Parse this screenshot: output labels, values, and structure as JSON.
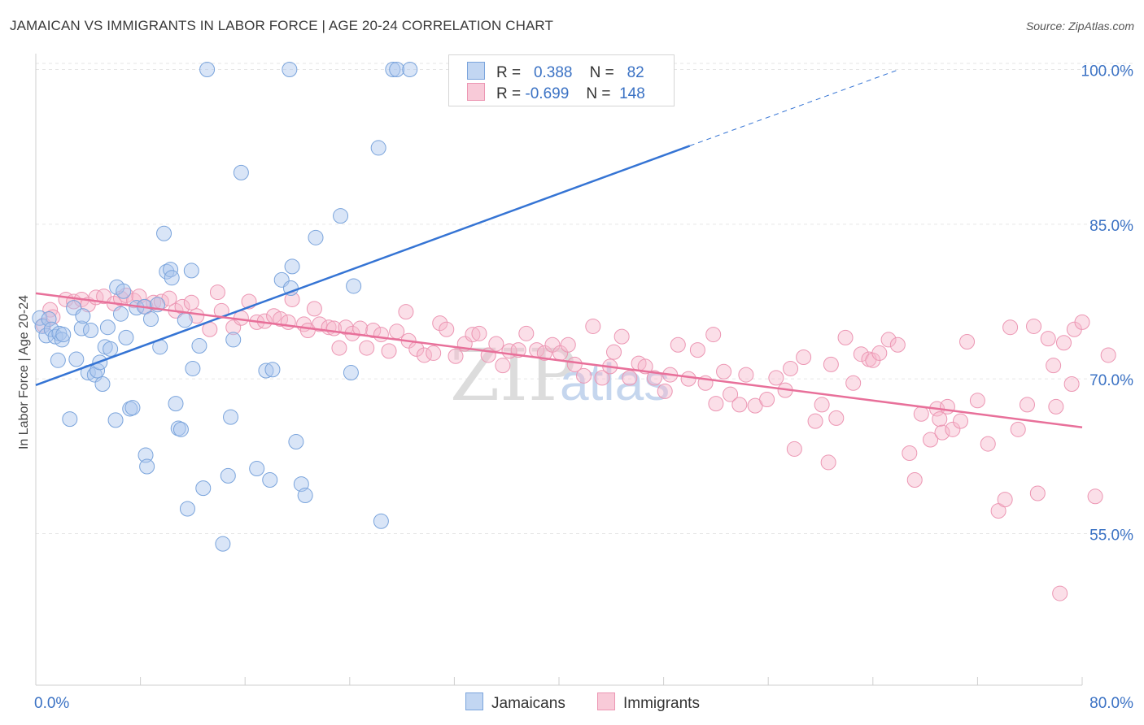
{
  "title": "JAMAICAN VS IMMIGRANTS IN LABOR FORCE | AGE 20-24 CORRELATION CHART",
  "source": "Source: ZipAtlas.com",
  "watermark": {
    "zip": "ZIP",
    "atlas": "atlas"
  },
  "legend": {
    "rows": [
      {
        "r_label": "R =",
        "r_value": "0.388",
        "n_label": "N =",
        "n_value": "82"
      },
      {
        "r_label": "R =",
        "r_value": "-0.699",
        "n_label": "N =",
        "n_value": "148"
      }
    ]
  },
  "bottom_legend": [
    "Jamaicans",
    "Immigrants"
  ],
  "colors": {
    "blue_fill": "#aac6ee",
    "blue_stroke": "#7aa4dc",
    "blue_line": "#3574d4",
    "pink_fill": "#f6b9cc",
    "pink_stroke": "#ec96b3",
    "pink_line": "#e8709a",
    "tick_text": "#3b72c4",
    "grid": "#e6e6e6"
  },
  "chart_data": {
    "type": "scatter",
    "title": "JAMAICAN VS IMMIGRANTS IN LABOR FORCE | AGE 20-24 CORRELATION CHART",
    "xlabel": "",
    "ylabel": "In Labor Force | Age 20-24",
    "xlim": [
      0,
      80
    ],
    "ylim": [
      40.3,
      101.3
    ],
    "x_tick_labels": [
      "0.0%",
      "80.0%"
    ],
    "y_ticks": [
      55,
      70,
      85,
      100
    ],
    "y_tick_labels": [
      "55.0%",
      "70.0%",
      "85.0%",
      "100.0%"
    ],
    "grid": "horizontal dashed",
    "series": [
      {
        "name": "Jamaicans",
        "R": 0.388,
        "N": 82,
        "trend": {
          "x": [
            0,
            50
          ],
          "y": [
            69.4,
            92.6
          ],
          "dashed_to": [
            66,
            100
          ]
        },
        "points": [
          [
            0.3,
            75.9
          ],
          [
            0.5,
            75.1
          ],
          [
            0.8,
            74.2
          ],
          [
            1.0,
            75.8
          ],
          [
            1.2,
            74.8
          ],
          [
            1.5,
            74.1
          ],
          [
            1.7,
            71.8
          ],
          [
            1.8,
            74.4
          ],
          [
            2.0,
            73.8
          ],
          [
            2.1,
            74.3
          ],
          [
            2.6,
            66.1
          ],
          [
            2.9,
            76.9
          ],
          [
            3.1,
            71.9
          ],
          [
            3.5,
            74.9
          ],
          [
            3.6,
            76.1
          ],
          [
            4.0,
            70.6
          ],
          [
            4.2,
            74.7
          ],
          [
            4.5,
            70.4
          ],
          [
            4.7,
            70.8
          ],
          [
            4.9,
            71.6
          ],
          [
            5.1,
            69.5
          ],
          [
            5.3,
            73.1
          ],
          [
            5.5,
            75.0
          ],
          [
            5.7,
            72.9
          ],
          [
            6.1,
            66.0
          ],
          [
            6.2,
            78.9
          ],
          [
            6.5,
            76.3
          ],
          [
            6.7,
            78.5
          ],
          [
            6.9,
            74.0
          ],
          [
            7.2,
            67.1
          ],
          [
            7.4,
            67.2
          ],
          [
            7.7,
            76.9
          ],
          [
            8.3,
            77.0
          ],
          [
            8.4,
            62.6
          ],
          [
            8.5,
            61.5
          ],
          [
            8.8,
            75.8
          ],
          [
            9.3,
            77.2
          ],
          [
            9.5,
            73.1
          ],
          [
            9.8,
            84.1
          ],
          [
            10.0,
            80.4
          ],
          [
            10.3,
            80.6
          ],
          [
            10.4,
            79.8
          ],
          [
            10.7,
            67.6
          ],
          [
            10.9,
            65.2
          ],
          [
            11.1,
            65.1
          ],
          [
            11.4,
            75.7
          ],
          [
            11.6,
            57.4
          ],
          [
            11.9,
            80.5
          ],
          [
            12.0,
            71.0
          ],
          [
            12.5,
            73.2
          ],
          [
            12.8,
            59.4
          ],
          [
            13.1,
            100.0
          ],
          [
            14.3,
            54.0
          ],
          [
            14.7,
            60.6
          ],
          [
            14.9,
            66.3
          ],
          [
            15.1,
            73.8
          ],
          [
            15.7,
            90.0
          ],
          [
            16.9,
            61.3
          ],
          [
            17.6,
            70.8
          ],
          [
            17.9,
            60.2
          ],
          [
            18.1,
            70.9
          ],
          [
            18.8,
            79.6
          ],
          [
            19.4,
            100.0
          ],
          [
            19.5,
            78.8
          ],
          [
            19.6,
            80.9
          ],
          [
            19.9,
            63.9
          ],
          [
            20.3,
            59.8
          ],
          [
            20.6,
            58.7
          ],
          [
            21.4,
            83.7
          ],
          [
            23.3,
            85.8
          ],
          [
            24.1,
            70.6
          ],
          [
            24.3,
            79.0
          ],
          [
            26.2,
            92.4
          ],
          [
            26.4,
            56.2
          ],
          [
            27.3,
            100.0
          ],
          [
            27.6,
            100.0
          ],
          [
            28.6,
            100.0
          ]
        ]
      },
      {
        "name": "Immigrants",
        "R": -0.699,
        "N": 148,
        "trend": {
          "x": [
            0,
            80
          ],
          "y": [
            78.3,
            65.3
          ]
        },
        "points": [
          [
            0.6,
            75.2
          ],
          [
            1.1,
            76.7
          ],
          [
            1.3,
            76.0
          ],
          [
            2.3,
            77.7
          ],
          [
            2.9,
            77.5
          ],
          [
            3.5,
            77.7
          ],
          [
            4.0,
            77.2
          ],
          [
            4.6,
            77.9
          ],
          [
            5.2,
            78.0
          ],
          [
            6.0,
            77.3
          ],
          [
            6.5,
            77.8
          ],
          [
            6.9,
            78.1
          ],
          [
            7.5,
            77.6
          ],
          [
            7.9,
            78.0
          ],
          [
            8.4,
            77.0
          ],
          [
            9.0,
            77.4
          ],
          [
            9.6,
            77.5
          ],
          [
            10.2,
            77.8
          ],
          [
            10.7,
            76.6
          ],
          [
            11.2,
            77.0
          ],
          [
            11.9,
            77.4
          ],
          [
            12.3,
            76.1
          ],
          [
            13.3,
            74.8
          ],
          [
            13.9,
            78.4
          ],
          [
            14.2,
            76.6
          ],
          [
            15.1,
            75.0
          ],
          [
            15.7,
            75.9
          ],
          [
            16.3,
            77.5
          ],
          [
            16.9,
            75.5
          ],
          [
            17.5,
            75.6
          ],
          [
            18.2,
            76.1
          ],
          [
            18.7,
            75.8
          ],
          [
            19.3,
            75.5
          ],
          [
            19.6,
            77.7
          ],
          [
            20.5,
            75.3
          ],
          [
            20.8,
            74.7
          ],
          [
            21.3,
            76.8
          ],
          [
            21.7,
            75.3
          ],
          [
            22.4,
            75.0
          ],
          [
            22.8,
            74.9
          ],
          [
            23.2,
            73.0
          ],
          [
            23.7,
            75.0
          ],
          [
            24.2,
            74.4
          ],
          [
            24.8,
            74.9
          ],
          [
            25.3,
            73.0
          ],
          [
            25.8,
            74.7
          ],
          [
            26.4,
            74.3
          ],
          [
            27.0,
            72.7
          ],
          [
            27.6,
            74.6
          ],
          [
            28.3,
            76.5
          ],
          [
            28.5,
            73.7
          ],
          [
            29.1,
            72.9
          ],
          [
            29.7,
            72.3
          ],
          [
            30.4,
            72.5
          ],
          [
            30.9,
            75.4
          ],
          [
            31.4,
            74.8
          ],
          [
            32.1,
            72.2
          ],
          [
            32.8,
            73.4
          ],
          [
            33.4,
            74.3
          ],
          [
            33.9,
            74.4
          ],
          [
            34.6,
            72.3
          ],
          [
            35.2,
            73.4
          ],
          [
            35.7,
            71.3
          ],
          [
            36.2,
            72.7
          ],
          [
            36.9,
            72.8
          ],
          [
            37.5,
            74.4
          ],
          [
            38.3,
            72.8
          ],
          [
            38.9,
            72.5
          ],
          [
            39.5,
            73.3
          ],
          [
            40.1,
            72.5
          ],
          [
            40.7,
            73.3
          ],
          [
            41.2,
            71.4
          ],
          [
            41.9,
            70.3
          ],
          [
            42.6,
            75.1
          ],
          [
            43.3,
            70.1
          ],
          [
            43.9,
            71.2
          ],
          [
            44.2,
            72.6
          ],
          [
            44.8,
            74.1
          ],
          [
            45.4,
            70.1
          ],
          [
            46.1,
            71.5
          ],
          [
            46.6,
            71.2
          ],
          [
            47.3,
            70.1
          ],
          [
            48.1,
            68.8
          ],
          [
            48.5,
            70.4
          ],
          [
            49.1,
            73.3
          ],
          [
            49.9,
            70.0
          ],
          [
            50.6,
            72.8
          ],
          [
            51.2,
            69.6
          ],
          [
            51.8,
            74.3
          ],
          [
            52.0,
            67.6
          ],
          [
            52.6,
            70.7
          ],
          [
            53.1,
            68.5
          ],
          [
            53.8,
            67.5
          ],
          [
            54.3,
            70.4
          ],
          [
            55.0,
            67.4
          ],
          [
            55.9,
            68.0
          ],
          [
            56.6,
            70.1
          ],
          [
            57.3,
            68.9
          ],
          [
            57.7,
            71.0
          ],
          [
            58.0,
            63.2
          ],
          [
            58.7,
            72.1
          ],
          [
            59.6,
            65.9
          ],
          [
            60.1,
            67.5
          ],
          [
            60.6,
            61.9
          ],
          [
            60.8,
            71.4
          ],
          [
            61.2,
            66.2
          ],
          [
            61.9,
            74.0
          ],
          [
            62.5,
            69.6
          ],
          [
            63.1,
            72.4
          ],
          [
            63.7,
            71.9
          ],
          [
            64.0,
            71.8
          ],
          [
            64.5,
            72.5
          ],
          [
            65.2,
            73.8
          ],
          [
            65.9,
            73.3
          ],
          [
            66.8,
            62.8
          ],
          [
            67.2,
            60.2
          ],
          [
            67.7,
            66.6
          ],
          [
            68.4,
            64.1
          ],
          [
            68.9,
            67.1
          ],
          [
            69.1,
            66.1
          ],
          [
            69.3,
            64.8
          ],
          [
            69.7,
            67.3
          ],
          [
            70.1,
            65.1
          ],
          [
            70.7,
            65.9
          ],
          [
            71.2,
            73.6
          ],
          [
            72.0,
            67.9
          ],
          [
            72.8,
            63.7
          ],
          [
            73.6,
            57.2
          ],
          [
            74.1,
            58.3
          ],
          [
            74.5,
            75.0
          ],
          [
            75.1,
            65.1
          ],
          [
            75.8,
            67.5
          ],
          [
            76.3,
            75.1
          ],
          [
            76.6,
            58.9
          ],
          [
            77.4,
            73.9
          ],
          [
            77.8,
            71.3
          ],
          [
            78.0,
            67.3
          ],
          [
            78.3,
            49.2
          ],
          [
            78.6,
            73.5
          ],
          [
            79.2,
            69.5
          ],
          [
            79.4,
            74.8
          ],
          [
            80.0,
            75.5
          ],
          [
            81.0,
            58.6
          ],
          [
            82.0,
            72.3
          ]
        ]
      }
    ]
  }
}
